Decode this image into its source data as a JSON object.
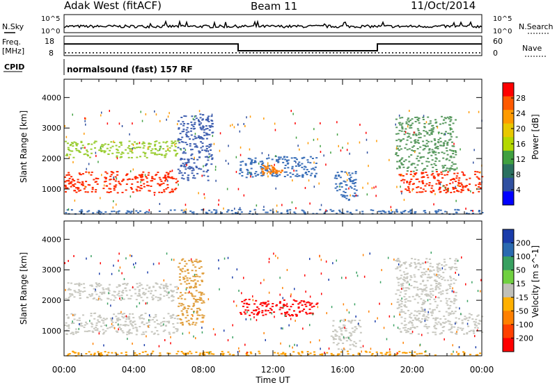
{
  "header": {
    "site": "Adak West (fitACF)",
    "beam": "Beam 11",
    "date": "11/Oct/2014"
  },
  "sky_panel": {
    "left_label": "N.Sky",
    "right_label": "N.Search",
    "tick_top": "10^5",
    "tick_bottom": "10^0"
  },
  "freq_panel": {
    "left_label_1": "Freq.",
    "left_label_2": "[MHz]",
    "right_label": "Nave",
    "left_ticks": [
      "18",
      "8"
    ],
    "right_ticks": [
      "60",
      "0"
    ],
    "freq_steps": [
      {
        "from_hour": 0,
        "to_hour": 10,
        "value": 14
      },
      {
        "from_hour": 10,
        "to_hour": 18,
        "value": 10.5
      },
      {
        "from_hour": 18,
        "to_hour": 24,
        "value": 14
      }
    ]
  },
  "cpid_panel": {
    "left_label": "CPID",
    "text": "normalsound (fast) 157 RF"
  },
  "x_axis": {
    "label": "Time UT",
    "ticks": [
      "00:00",
      "04:00",
      "08:00",
      "12:00",
      "16:00",
      "20:00",
      "00:00"
    ]
  },
  "chart_data": [
    {
      "type": "heatmap",
      "panel": "power",
      "ylabel": "Slant Range [km]",
      "yticks": [
        1000,
        2000,
        3000,
        4000
      ],
      "ylim": [
        180,
        4600
      ],
      "xlim_hours": [
        0,
        24
      ],
      "colorbar": {
        "label": "Power [dB]",
        "ticks": [
          "28",
          "24",
          "20",
          "16",
          "12",
          "8",
          "4"
        ],
        "colors": [
          "#ff0000",
          "#ff5a00",
          "#ff9a00",
          "#e8c800",
          "#b4d800",
          "#40a040",
          "#2a7060",
          "#3050a0",
          "#0000ff"
        ]
      },
      "regions": [
        {
          "t0": 0.0,
          "t1": 6.5,
          "r0": 900,
          "r1": 1600,
          "color": "#ff2a00",
          "note": "strong band"
        },
        {
          "t0": 0.0,
          "t1": 6.5,
          "r0": 2050,
          "r1": 2600,
          "color": "#9acd32"
        },
        {
          "t0": 6.5,
          "t1": 8.5,
          "r0": 1300,
          "r1": 3500,
          "color": "#4060b0"
        },
        {
          "t0": 10.0,
          "t1": 14.5,
          "r0": 1400,
          "r1": 2100,
          "color": "#3a6fb8"
        },
        {
          "t0": 11.3,
          "t1": 12.5,
          "r0": 1500,
          "r1": 1800,
          "color": "#ff7a00"
        },
        {
          "t0": 15.5,
          "t1": 16.8,
          "r0": 600,
          "r1": 1600,
          "color": "#3a6fb8"
        },
        {
          "t0": 0.0,
          "t1": 24.0,
          "r0": 200,
          "r1": 350,
          "color": "#3a6fb8"
        },
        {
          "t0": 19.2,
          "t1": 24.0,
          "r0": 900,
          "r1": 1600,
          "color": "#ff2a00"
        },
        {
          "t0": 19.0,
          "t1": 22.5,
          "r0": 1600,
          "r1": 3400,
          "color": "#5a9a60"
        }
      ]
    },
    {
      "type": "heatmap",
      "panel": "velocity",
      "ylabel": "Slant Range [km]",
      "yticks": [
        1000,
        2000,
        3000,
        4000
      ],
      "ylim": [
        180,
        4600
      ],
      "xlim_hours": [
        0,
        24
      ],
      "colorbar": {
        "label": "Velocity [m s^-1]",
        "ticks": [
          "200",
          "100",
          "50",
          "15",
          "-15",
          "-50",
          "-100",
          "-200"
        ],
        "colors": [
          "#1a3caa",
          "#2a6ab0",
          "#38a060",
          "#70d040",
          "#c0c0b8",
          "#ffb000",
          "#ff8000",
          "#ff4000",
          "#ff0000"
        ]
      },
      "regions": [
        {
          "t0": 0.0,
          "t1": 6.5,
          "r0": 900,
          "r1": 1600,
          "color": "#c8c8c0"
        },
        {
          "t0": 0.0,
          "t1": 6.5,
          "r0": 2000,
          "r1": 2600,
          "color": "#c8c8c0"
        },
        {
          "t0": 6.5,
          "t1": 8.0,
          "r0": 1200,
          "r1": 3400,
          "color": "#e0a040"
        },
        {
          "t0": 10.0,
          "t1": 14.5,
          "r0": 1500,
          "r1": 2050,
          "color": "#ff0000"
        },
        {
          "t0": 15.3,
          "t1": 17.0,
          "r0": 400,
          "r1": 1400,
          "color": "#c8c8c0"
        },
        {
          "t0": 0.0,
          "t1": 24.0,
          "r0": 200,
          "r1": 350,
          "color": "#ffa000"
        },
        {
          "t0": 19.2,
          "t1": 24.0,
          "r0": 900,
          "r1": 1600,
          "color": "#c8c8c0"
        },
        {
          "t0": 19.0,
          "t1": 22.5,
          "r0": 1600,
          "r1": 3400,
          "color": "#c8c8c0"
        }
      ]
    }
  ]
}
